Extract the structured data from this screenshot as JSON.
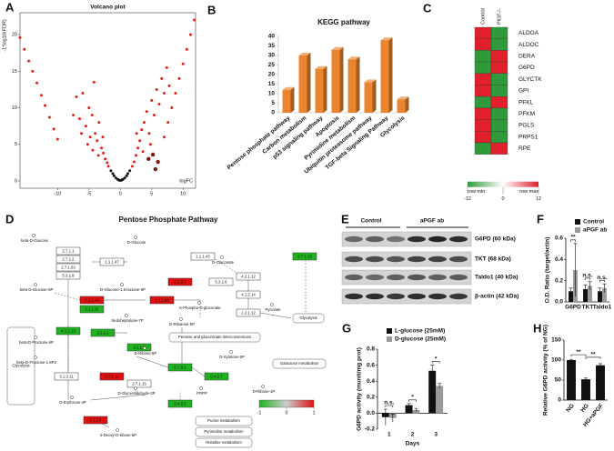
{
  "chart_data": [
    {
      "type": "scatter",
      "label": "A",
      "title": "Volcano plot",
      "xlabel": "logFC",
      "ylabel": "-1*log10(FDR)",
      "xlim": [
        -16,
        12
      ],
      "ylim": [
        -1,
        23
      ],
      "xticks": [
        -10,
        -5,
        0,
        5,
        10
      ],
      "yticks": [
        0,
        5,
        10,
        15,
        20
      ],
      "series": [
        {
          "color": "#111111",
          "x": [
            -1.5,
            -1.2,
            -1,
            -0.7,
            -0.4,
            0,
            0.4,
            0.7,
            1,
            1.2,
            1.5,
            -0.2,
            0.2
          ],
          "values": [
            1.4,
            1.0,
            0.7,
            0.4,
            0.2,
            0.05,
            0.2,
            0.4,
            0.7,
            1.0,
            1.4,
            0.1,
            0.1
          ]
        },
        {
          "color": "#e0201c",
          "x": [
            -16,
            -15.3,
            -14.6,
            -14,
            -13.3,
            -12.6,
            -12,
            -11.3,
            -10.6,
            -10,
            -7.5,
            -7,
            -6.5,
            -6,
            -5.5,
            -5,
            -4.8,
            -4.5,
            -4.2,
            -4,
            -3.7,
            -3.4,
            -3,
            -2.7,
            -2.4,
            -2.1,
            -1.9,
            -5.2,
            -3.5,
            -6.2,
            -4.4,
            -2.8,
            1.9,
            2.2,
            2.5,
            2.8,
            3.1,
            3.4,
            3.8,
            4.2,
            4.6,
            5,
            5.4,
            5.8,
            6.2,
            6.6,
            7,
            7.4,
            7.8,
            3.6,
            4.8,
            2.6,
            7,
            7.6,
            8.2,
            8.8,
            9.4,
            10,
            10.6,
            11.2,
            11.8
          ],
          "values": [
            19.6,
            18,
            16.4,
            15,
            13.4,
            11.7,
            10.3,
            8.7,
            7.1,
            5.7,
            9,
            11.5,
            8.5,
            12,
            7.5,
            10,
            6,
            9,
            13.5,
            6.5,
            5.5,
            8,
            4.5,
            3.8,
            3,
            2.5,
            2,
            5,
            3.5,
            6.5,
            4.2,
            6,
            2,
            2.6,
            3.5,
            4.5,
            5.5,
            7,
            8,
            9.5,
            6.5,
            11,
            9,
            12.5,
            10.5,
            14,
            12,
            15.5,
            13,
            4,
            5,
            6.5,
            6,
            8,
            10,
            12,
            14,
            16,
            18,
            20,
            22
          ]
        },
        {
          "color": "#7a1a14",
          "x": [
            4.5,
            5.2,
            6,
            5.6
          ],
          "values": [
            3,
            3.6,
            2.6,
            1.6
          ]
        }
      ]
    },
    {
      "type": "bar3d",
      "label": "B",
      "title": "KEGG pathway",
      "categories": [
        "Pentose phosphate pathway",
        "Carbon metabolism",
        "p53 signaling pathway",
        "Apoptosis",
        "Pyrimidine metabolism",
        "Ubiquitin proteasome pathway",
        "TGF-beta Signaling Pathway",
        "Glycolysis"
      ],
      "values": [
        12,
        30,
        23,
        33,
        28,
        16,
        38,
        7
      ],
      "color": "#e8852e",
      "ylim": [
        0,
        40
      ],
      "yticks": [
        0,
        5,
        10,
        15,
        20,
        25,
        30,
        35,
        40
      ]
    },
    {
      "type": "heatmap",
      "label": "C",
      "columns": [
        "Control",
        "PlGF-/-"
      ],
      "rows": [
        "ALDOA",
        "ALDOC",
        "DERA",
        "G6PD",
        "GLYCTK",
        "GPI",
        "PFKL",
        "PFKM",
        "PGLS",
        "PRPS1",
        "RPE"
      ],
      "values": [
        [
          12,
          -12
        ],
        [
          12,
          -12
        ],
        [
          -12,
          12
        ],
        [
          -12,
          12
        ],
        [
          12,
          -12
        ],
        [
          12,
          -12
        ],
        [
          -12,
          12
        ],
        [
          12,
          -12
        ],
        [
          12,
          -12
        ],
        [
          12,
          -12
        ],
        [
          -12,
          12
        ]
      ],
      "low": "#2e9a3a",
      "mid": "#ffffff",
      "high": "#e0202a",
      "legend_ticks": [
        -12,
        0,
        12
      ],
      "legend_labels": [
        "row min",
        "row max"
      ]
    },
    {
      "type": "bar",
      "label": "F",
      "ylabel": "O.D. Ratio (target/actin)",
      "categories": [
        "G6PD",
        "TKT",
        "Taldo1"
      ],
      "series": [
        {
          "name": "Control",
          "color": "#111111",
          "values": [
            0.1,
            0.12,
            0.1
          ],
          "errors": [
            0.03,
            0.04,
            0.03
          ]
        },
        {
          "name": "aPGF ab",
          "color": "#9a9a9a",
          "values": [
            0.3,
            0.15,
            0.13
          ],
          "errors": [
            0.25,
            0.04,
            0.04
          ]
        }
      ],
      "ylim": [
        0,
        0.6
      ],
      "yticks": [
        {
          "value": 0,
          "label": "0.0"
        },
        0.2,
        0.4,
        0.6
      ],
      "annotations": [
        {
          "text": "**",
          "category": 0
        },
        {
          "text": "n.s.",
          "category": 1
        },
        {
          "text": "n.s.",
          "category": 2
        }
      ]
    },
    {
      "type": "bar",
      "label": "G",
      "ylabel": "G6PD activity (munit/mg prot)",
      "xlabel": "Days",
      "categories": [
        "1",
        "2",
        "3"
      ],
      "series": [
        {
          "name": "L-glucose (25mM)",
          "color": "#111111",
          "values": [
            -0.05,
            0.1,
            0.53
          ],
          "errors": [
            0.1,
            0.02,
            0.07
          ]
        },
        {
          "name": "D-glucose (25mM)",
          "color": "#9a9a9a",
          "values": [
            -0.06,
            0.04,
            0.34
          ],
          "errors": [
            0.05,
            0.02,
            0.03
          ]
        }
      ],
      "ylim": [
        -0.2,
        0.8
      ],
      "yticks": [
        -0.2,
        {
          "value": 0,
          "label": "0.0"
        },
        0.2,
        0.4,
        0.6,
        0.8
      ],
      "annotations": [
        {
          "text": "n.s.",
          "category": 0
        },
        {
          "text": "*",
          "category": 1
        },
        {
          "text": "*",
          "category": 2
        }
      ]
    },
    {
      "type": "bar",
      "label": "H",
      "ylabel": "Relative G6PD activity (% of NG)",
      "categories": [
        "NG",
        "HG",
        "HG+aPGF"
      ],
      "series": [
        {
          "color": "#111111",
          "values": [
            100,
            52,
            87
          ],
          "errors": [
            2,
            3,
            4
          ]
        }
      ],
      "ylim": [
        0,
        150
      ],
      "yticks": [
        0,
        50,
        100,
        150
      ],
      "annotations": [
        {
          "text": "**",
          "pair": [
            0,
            1
          ]
        },
        {
          "text": "**",
          "pair": [
            1,
            2
          ]
        }
      ]
    }
  ],
  "pathway": {
    "label": "D",
    "title": "Pentose Phosphate Pathway",
    "enzymes": [
      {
        "label": "2.7.1.1"
      },
      {
        "label": "2.7.1.2"
      },
      {
        "label": "2.7.1.63"
      },
      {
        "label": "5.3.1.9"
      },
      {
        "label": "1.1.1.47"
      },
      {
        "label": "1.1.1.49",
        "value": 1
      },
      {
        "label": "3.1.1.31",
        "value": -1
      },
      {
        "label": "1.1.1.44",
        "value": 1
      },
      {
        "label": "1.1.1.43"
      },
      {
        "label": "2.7.1.13",
        "value": -1
      },
      {
        "label": "5.1.3.1",
        "value": 1
      },
      {
        "label": "5.3.1.6"
      },
      {
        "label": "2.2.1.1",
        "value": -1
      },
      {
        "label": "2.2.1.2",
        "value": -1
      },
      {
        "label": "4.1.2.13",
        "value": -1
      },
      {
        "label": "3.1.3.11"
      },
      {
        "label": "2.7.1.11",
        "value": 1
      },
      {
        "label": "2.7.6.1",
        "value": -1
      },
      {
        "label": "5.4.2.2",
        "value": -1
      },
      {
        "label": "5.4.2.7",
        "value": -1
      },
      {
        "label": "2.7.1.15"
      },
      {
        "label": "4.1.2.4",
        "value": 1
      },
      {
        "label": "4.2.1.12"
      },
      {
        "label": "4.1.2.14"
      },
      {
        "label": "1.2.1.12"
      }
    ],
    "metabolites": [
      "D-Glucose",
      "beta-D-Glucose",
      "beta-D-Glucose-6P",
      "D-Glucono-1,5-lactone-6P",
      "6-Phospho-D-gluconate",
      "D-Gluconate",
      "D-Ribulose-5P",
      "Sedoheptulose-7P",
      "D-Ribose-5P",
      "D-Xylulose-5P",
      "beta-D-Fructose-6P",
      "beta-D-Fructose-1,6P2",
      "D-Glyceraldehyde-3P",
      "D-Erythrose-4P",
      "PRPP",
      "D-Ribose-1P",
      "2-Deoxy-D-ribose-5P",
      "Pyruvate"
    ],
    "maps": [
      "Glycolysis",
      "Glycolysis",
      "Galactose metabolism",
      "Pentose and glucuronate interconversions",
      "Purine metabolism",
      "Pyrimidine metabolism",
      "Histidine metabolism"
    ],
    "scale": {
      "ticks": [
        -1,
        0,
        1
      ],
      "low": "#1fb31f",
      "mid": "#cccccc",
      "high": "#e01010"
    }
  },
  "western": {
    "label": "E",
    "groups": [
      "Control",
      "aPGF ab"
    ],
    "bands": [
      "G6PD (60 kDa)",
      "TKT (68 kDa)",
      "Taldo1 (40 kDa)",
      "β-actin (42 kDa)"
    ]
  }
}
